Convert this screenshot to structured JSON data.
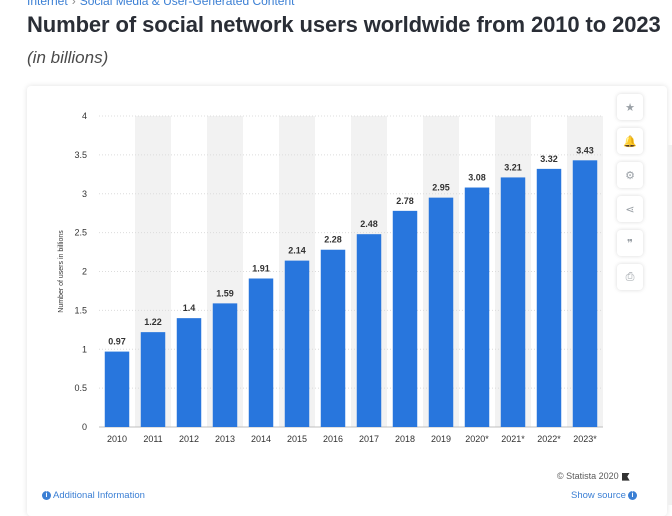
{
  "breadcrumb": {
    "part1": "Internet",
    "sep": "›",
    "part2": "Social Media & User-Generated Content"
  },
  "header": {
    "title": "Number of social network users worldwide from 2010 to 2023",
    "subtitle": "(in billions)"
  },
  "tools": [
    {
      "icon": "star-icon",
      "glyph": "★"
    },
    {
      "icon": "bell-icon",
      "glyph": "🔔"
    },
    {
      "icon": "gear-icon",
      "glyph": "⚙"
    },
    {
      "icon": "share-icon",
      "glyph": "⋖"
    },
    {
      "icon": "quote-icon",
      "glyph": "❞"
    },
    {
      "icon": "print-icon",
      "glyph": "⎙"
    }
  ],
  "footer": {
    "copyright": "© Statista 2020",
    "additional_info": "Additional Information",
    "show_source": "Show source"
  },
  "colors": {
    "bar": "#2876dd",
    "accent": "#3b7fd4",
    "band": "#f2f2f2",
    "grid": "#dcdcdc"
  },
  "chart_data": {
    "type": "bar",
    "categories": [
      "2010",
      "2011",
      "2012",
      "2013",
      "2014",
      "2015",
      "2016",
      "2017",
      "2018",
      "2019",
      "2020*",
      "2021*",
      "2022*",
      "2023*"
    ],
    "values": [
      0.97,
      1.22,
      1.4,
      1.59,
      1.91,
      2.14,
      2.28,
      2.48,
      2.78,
      2.95,
      3.08,
      3.21,
      3.32,
      3.43
    ],
    "value_labels": [
      "0.97",
      "1.22",
      "1.4",
      "1.59",
      "1.91",
      "2.14",
      "2.28",
      "2.48",
      "2.78",
      "2.95",
      "3.08",
      "3.21",
      "3.32",
      "3.43"
    ],
    "ylabel": "Number of users in billions",
    "ylim": [
      0,
      4
    ],
    "yticks": [
      0,
      0.5,
      1,
      1.5,
      2,
      2.5,
      3,
      3.5,
      4
    ],
    "ytick_labels": [
      "0",
      "0.5",
      "1",
      "1.5",
      "2",
      "2.5",
      "3",
      "3.5",
      "4"
    ],
    "grid": true
  }
}
